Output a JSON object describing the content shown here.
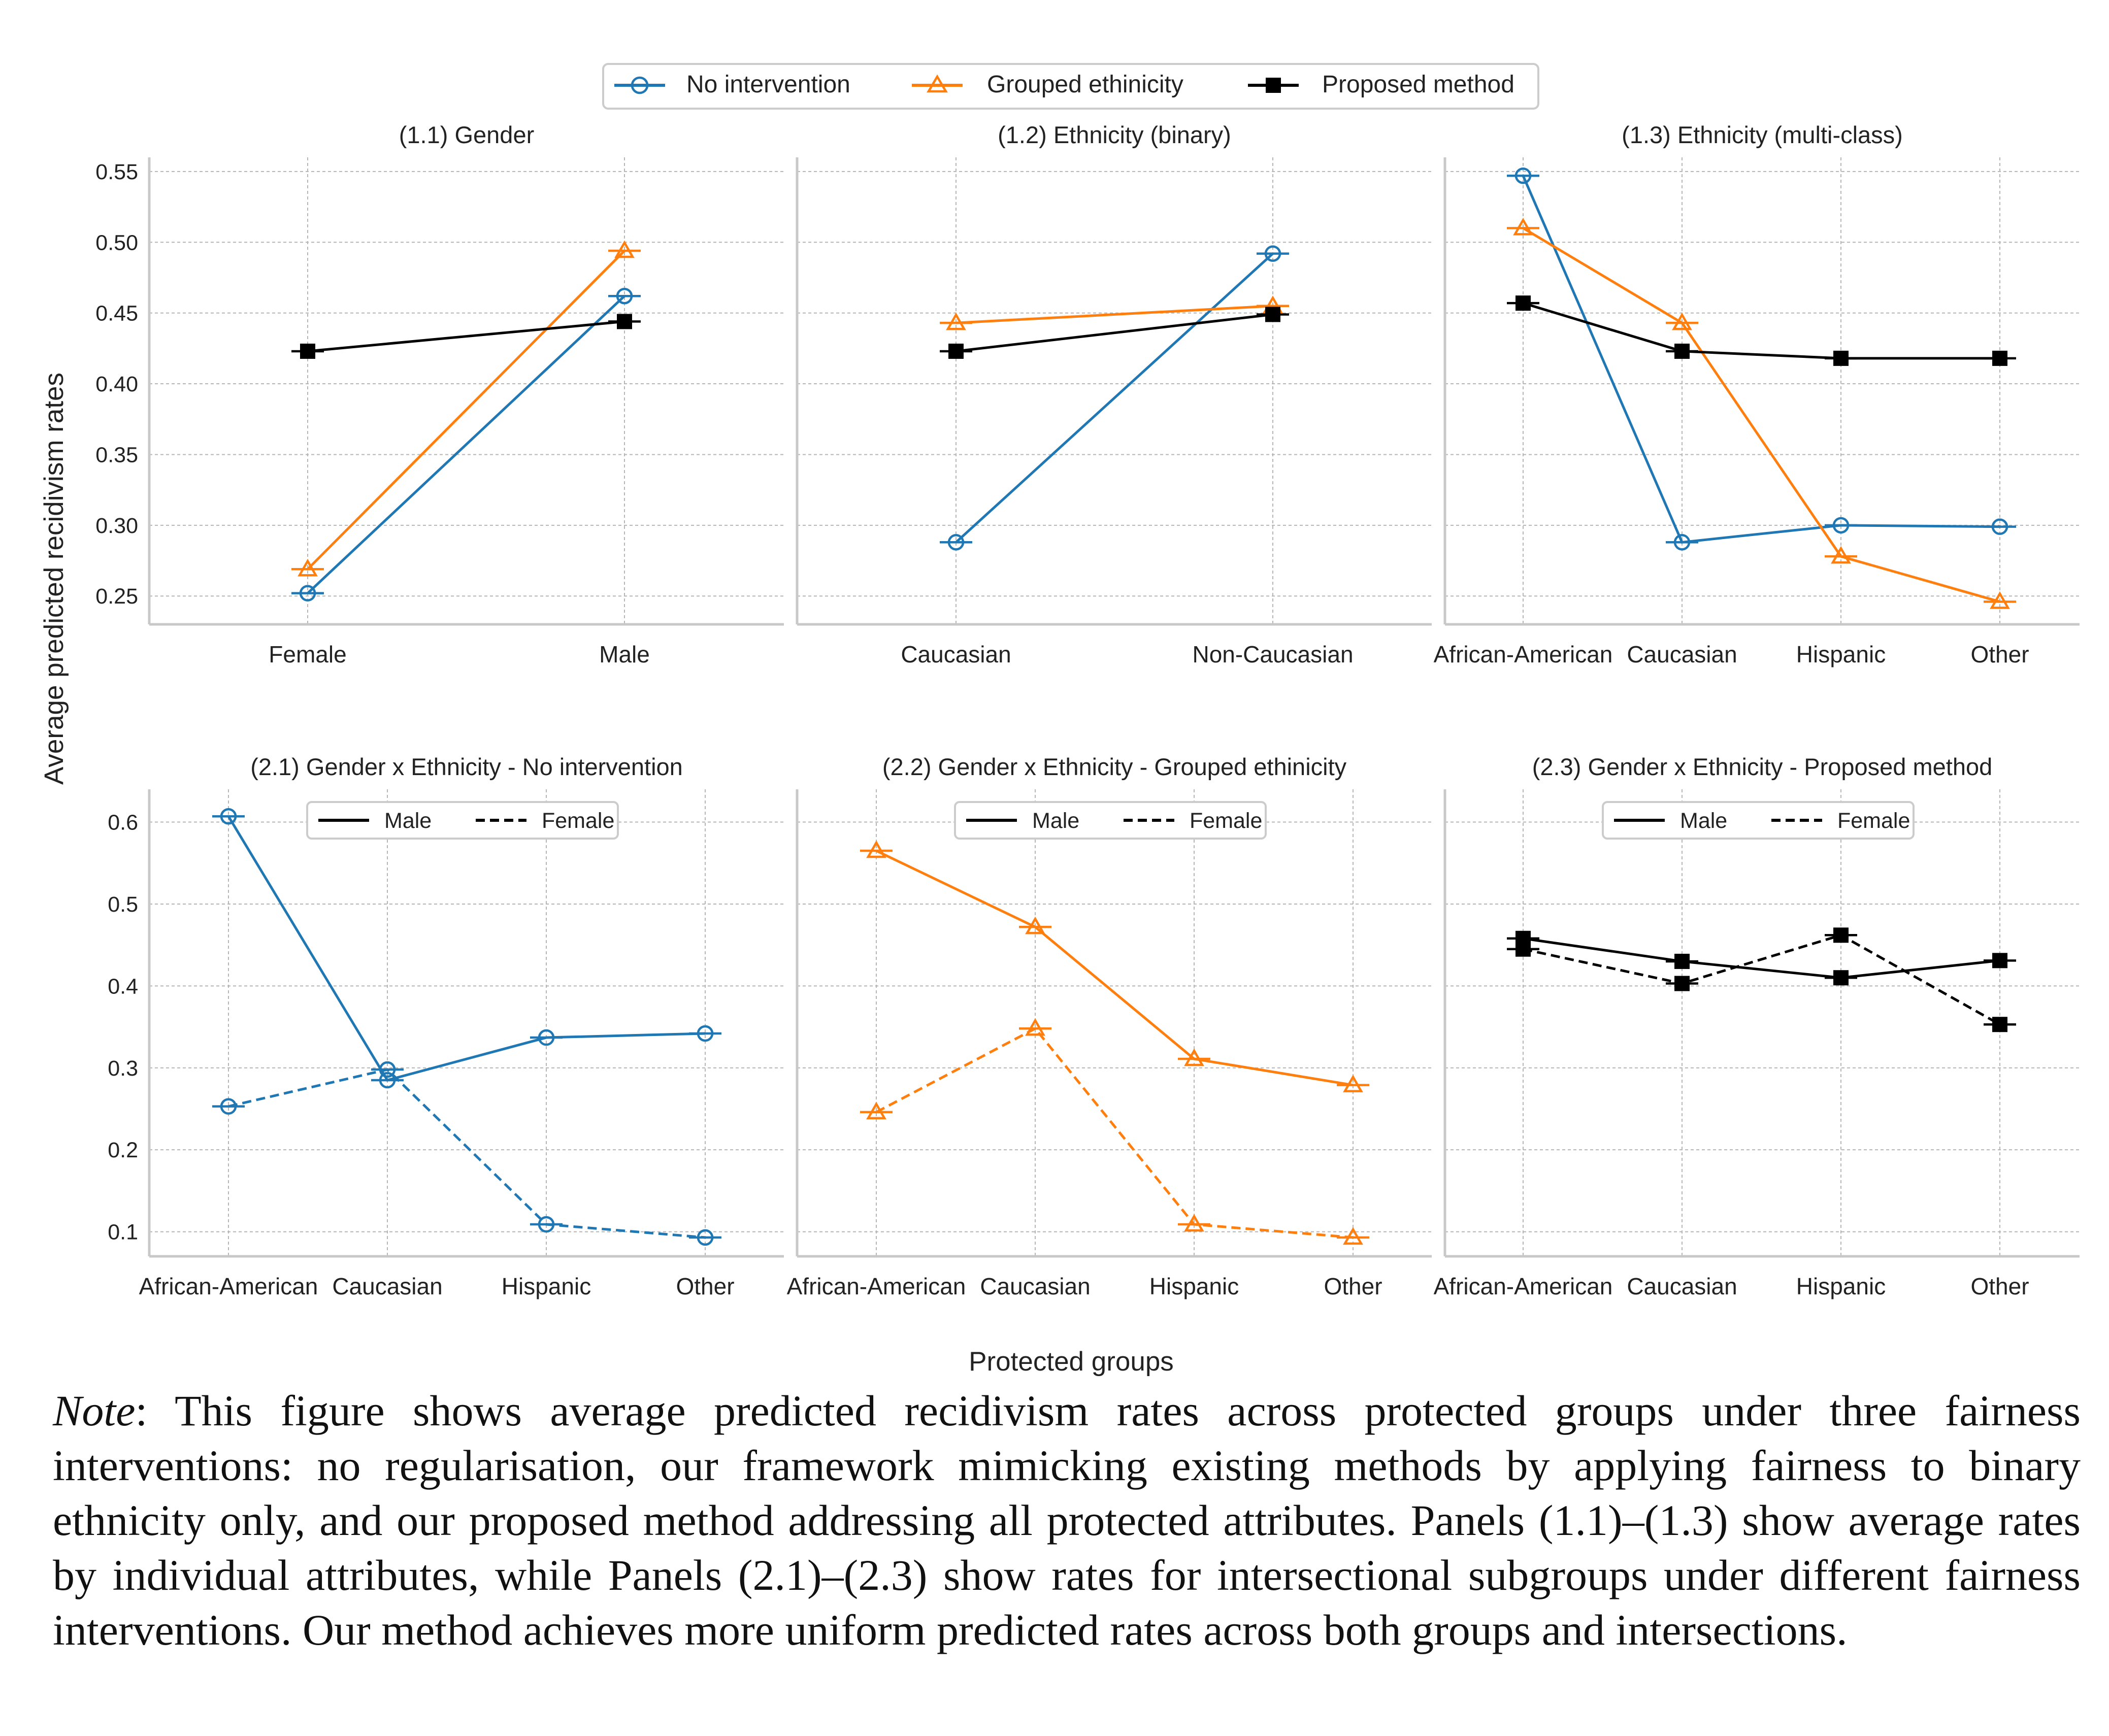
{
  "colors": {
    "no_intervention": "#1f77b4",
    "grouped": "#ff7f0e",
    "proposed": "#000000"
  },
  "legend": [
    {
      "label": "No intervention",
      "marker": "circle",
      "color": "#1f77b4"
    },
    {
      "label": "Grouped ethinicity",
      "marker": "triangle",
      "color": "#ff7f0e"
    },
    {
      "label": "Proposed method",
      "marker": "square",
      "color": "#000000"
    }
  ],
  "ylabel": "Average predicted recidivism rates",
  "xlabel": "Protected groups",
  "note": {
    "label": "Note",
    "text": ": This figure shows average predicted recidivism rates across protected groups under three fairness interventions: no regularisation, our framework mimicking existing methods by applying fairness to binary ethnicity only, and our proposed method addressing all protected attributes. Panels (1.1)–(1.3) show average rates by individual attributes, while Panels (2.1)–(2.3) show rates for intersectional subgroups under different fairness interventions. Our method achieves more uniform predicted rates across both groups and intersections."
  },
  "chart_data": [
    {
      "id": "p11",
      "type": "line",
      "title": "(1.1) Gender",
      "categories": [
        "Female",
        "Male"
      ],
      "ylim": [
        0.23,
        0.56
      ],
      "yticks": [
        0.25,
        0.3,
        0.35,
        0.4,
        0.45,
        0.5,
        0.55
      ],
      "ytick_labels": [
        "0.25",
        "0.30",
        "0.35",
        "0.40",
        "0.45",
        "0.50",
        "0.55"
      ],
      "series": [
        {
          "name": "No intervention",
          "marker": "circle",
          "color": "#1f77b4",
          "dash": "solid",
          "values": [
            0.252,
            0.462
          ]
        },
        {
          "name": "Grouped ethinicity",
          "marker": "triangle",
          "color": "#ff7f0e",
          "dash": "solid",
          "values": [
            0.269,
            0.494
          ]
        },
        {
          "name": "Proposed method",
          "marker": "square",
          "color": "#000000",
          "dash": "solid",
          "values": [
            0.423,
            0.444
          ]
        }
      ]
    },
    {
      "id": "p12",
      "type": "line",
      "title": "(1.2) Ethnicity (binary)",
      "categories": [
        "Caucasian",
        "Non-Caucasian"
      ],
      "ylim": [
        0.23,
        0.56
      ],
      "yticks": [
        0.25,
        0.3,
        0.35,
        0.4,
        0.45,
        0.5,
        0.55
      ],
      "ytick_labels": [],
      "series": [
        {
          "name": "No intervention",
          "marker": "circle",
          "color": "#1f77b4",
          "dash": "solid",
          "values": [
            0.288,
            0.492
          ]
        },
        {
          "name": "Grouped ethinicity",
          "marker": "triangle",
          "color": "#ff7f0e",
          "dash": "solid",
          "values": [
            0.443,
            0.455
          ]
        },
        {
          "name": "Proposed method",
          "marker": "square",
          "color": "#000000",
          "dash": "solid",
          "values": [
            0.423,
            0.449
          ]
        }
      ]
    },
    {
      "id": "p13",
      "type": "line",
      "title": "(1.3) Ethnicity (multi-class)",
      "categories": [
        "African-American",
        "Caucasian",
        "Hispanic",
        "Other"
      ],
      "ylim": [
        0.23,
        0.56
      ],
      "yticks": [
        0.25,
        0.3,
        0.35,
        0.4,
        0.45,
        0.5,
        0.55
      ],
      "ytick_labels": [],
      "series": [
        {
          "name": "No intervention",
          "marker": "circle",
          "color": "#1f77b4",
          "dash": "solid",
          "values": [
            0.547,
            0.288,
            0.3,
            0.299
          ]
        },
        {
          "name": "Grouped ethinicity",
          "marker": "triangle",
          "color": "#ff7f0e",
          "dash": "solid",
          "values": [
            0.51,
            0.443,
            0.278,
            0.246
          ]
        },
        {
          "name": "Proposed method",
          "marker": "square",
          "color": "#000000",
          "dash": "solid",
          "values": [
            0.457,
            0.423,
            0.418,
            0.418
          ]
        }
      ]
    },
    {
      "id": "p21",
      "type": "line",
      "title": "(2.1) Gender x Ethnicity - No intervention",
      "categories": [
        "African-American",
        "Caucasian",
        "Hispanic",
        "Other"
      ],
      "ylim": [
        0.07,
        0.64
      ],
      "yticks": [
        0.1,
        0.2,
        0.3,
        0.4,
        0.5,
        0.6
      ],
      "ytick_labels": [
        "0.1",
        "0.2",
        "0.3",
        "0.4",
        "0.5",
        "0.6"
      ],
      "inner_legend": [
        {
          "label": "Male",
          "dash": "solid"
        },
        {
          "label": "Female",
          "dash": "dashed"
        }
      ],
      "series": [
        {
          "name": "Male",
          "marker": "circle",
          "color": "#1f77b4",
          "dash": "solid",
          "values": [
            0.607,
            0.285,
            0.337,
            0.342
          ]
        },
        {
          "name": "Female",
          "marker": "circle",
          "color": "#1f77b4",
          "dash": "dashed",
          "values": [
            0.253,
            0.298,
            0.109,
            0.093
          ]
        }
      ]
    },
    {
      "id": "p22",
      "type": "line",
      "title": "(2.2) Gender x Ethnicity - Grouped ethinicity",
      "categories": [
        "African-American",
        "Caucasian",
        "Hispanic",
        "Other"
      ],
      "ylim": [
        0.07,
        0.64
      ],
      "yticks": [
        0.1,
        0.2,
        0.3,
        0.4,
        0.5,
        0.6
      ],
      "ytick_labels": [],
      "inner_legend": [
        {
          "label": "Male",
          "dash": "solid"
        },
        {
          "label": "Female",
          "dash": "dashed"
        }
      ],
      "series": [
        {
          "name": "Male",
          "marker": "triangle",
          "color": "#ff7f0e",
          "dash": "solid",
          "values": [
            0.565,
            0.472,
            0.311,
            0.279
          ]
        },
        {
          "name": "Female",
          "marker": "triangle",
          "color": "#ff7f0e",
          "dash": "dashed",
          "values": [
            0.246,
            0.348,
            0.109,
            0.093
          ]
        }
      ]
    },
    {
      "id": "p23",
      "type": "line",
      "title": "(2.3) Gender x Ethnicity - Proposed method",
      "categories": [
        "African-American",
        "Caucasian",
        "Hispanic",
        "Other"
      ],
      "ylim": [
        0.07,
        0.64
      ],
      "yticks": [
        0.1,
        0.2,
        0.3,
        0.4,
        0.5,
        0.6
      ],
      "ytick_labels": [],
      "inner_legend": [
        {
          "label": "Male",
          "dash": "solid"
        },
        {
          "label": "Female",
          "dash": "dashed"
        }
      ],
      "series": [
        {
          "name": "Male",
          "marker": "square",
          "color": "#000000",
          "dash": "solid",
          "values": [
            0.458,
            0.43,
            0.41,
            0.431
          ]
        },
        {
          "name": "Female",
          "marker": "square",
          "color": "#000000",
          "dash": "dashed",
          "values": [
            0.445,
            0.403,
            0.462,
            0.353
          ]
        }
      ]
    }
  ]
}
